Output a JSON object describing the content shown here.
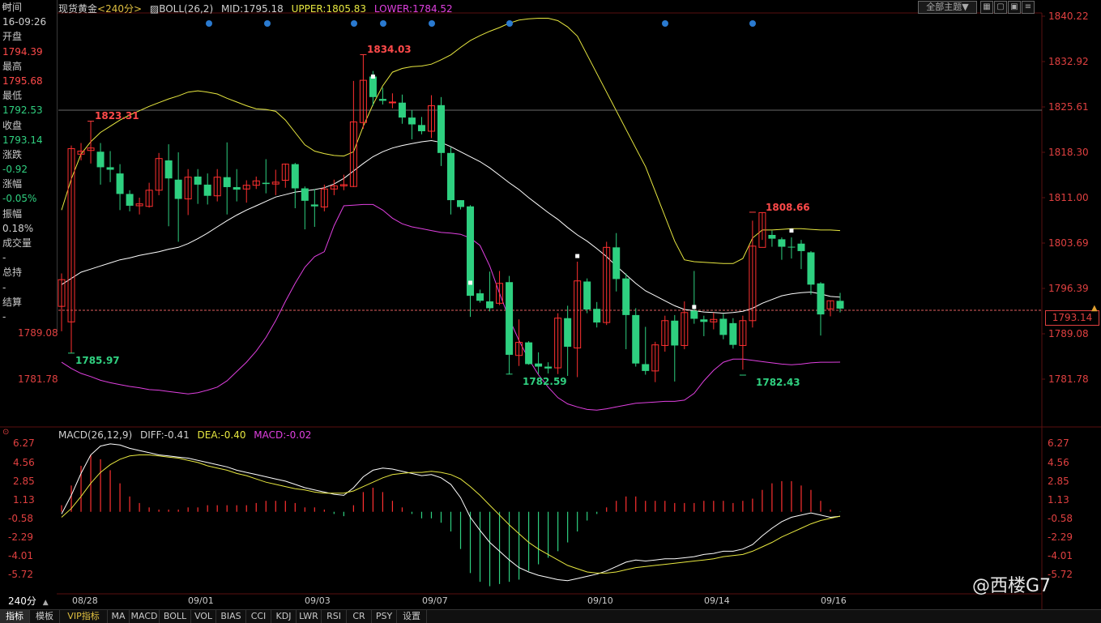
{
  "header": {
    "symbol": "现货黄金",
    "period": "<240分>",
    "indicator_name": "BOLL(26,2)",
    "mid_label": "MID:1795.18",
    "upper_label": "UPPER:1805.83",
    "lower_label": "LOWER:1784.52",
    "theme_button": "全部主题▼"
  },
  "info_panel": {
    "time_label": "时间",
    "time_value": "16-09:26",
    "open_label": "开盘",
    "open_value": "1794.39",
    "high_label": "最高",
    "high_value": "1795.68",
    "low_label": "最低",
    "low_value": "1792.53",
    "close_label": "收盘",
    "close_value": "1793.14",
    "change_label": "涨跌",
    "change_value": "-0.92",
    "pct_label": "涨幅",
    "pct_value": "-0.05%",
    "amp_label": "振幅",
    "amp_value": "0.18%",
    "vol_label": "成交量",
    "vol_value": "-",
    "oi_label": "总持",
    "oi_value": "-",
    "settle_label": "结算",
    "settle_value": "-"
  },
  "price_axis": [
    "1840.22",
    "1832.92",
    "1825.61",
    "1818.30",
    "1811.00",
    "1803.69",
    "1796.39",
    "1789.08",
    "1781.78"
  ],
  "left_axis_extra": [
    "1789.08",
    "1781.78"
  ],
  "current_price": "1793.14",
  "annotations": {
    "high1": "1823.31",
    "high2": "1834.03",
    "high3": "1808.66",
    "low1": "1785.97",
    "low2": "1782.59",
    "low3": "1782.43"
  },
  "macd": {
    "title": "MACD(26,12,9)",
    "diff": "DIFF:-0.41",
    "dea": "DEA:-0.40",
    "macd": "MACD:-0.02",
    "axis": [
      "6.27",
      "4.56",
      "2.85",
      "1.13",
      "-0.58",
      "-2.29",
      "-4.01",
      "-5.72"
    ]
  },
  "dates": [
    "08/28",
    "09/01",
    "09/03",
    "09/07",
    "09/10",
    "09/14",
    "09/16"
  ],
  "period_select": "240分",
  "tabs": [
    "指标",
    "模板",
    "VIP指标",
    "MA",
    "MACD",
    "BOLL",
    "VOL",
    "BIAS",
    "CCI",
    "KDJ",
    "LWR",
    "RSI",
    "CR",
    "PSY",
    "设置"
  ],
  "watermark": "@西楼G7",
  "colors": {
    "up": "#ff4a4a",
    "down": "#30d080",
    "mid": "#ffffff",
    "upper": "#e8e840",
    "lower": "#e040e0"
  }
}
